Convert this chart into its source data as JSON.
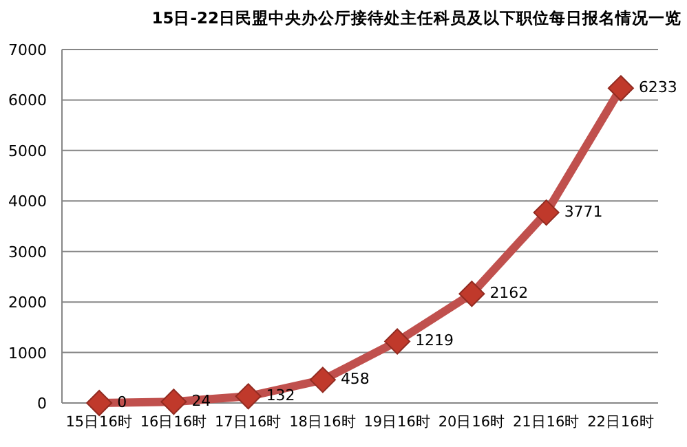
{
  "chart_data": {
    "type": "line",
    "title": "15日-22日民盟中央办公厅接待处主任科员及以下职位每日报名情况一览",
    "categories": [
      "15日16时",
      "16日16时",
      "17日16时",
      "18日16时",
      "19日16时",
      "20日16时",
      "21日16时",
      "22日16时"
    ],
    "series": [
      {
        "color": "#c0504d",
        "values": [
          0,
          24,
          132,
          458,
          1219,
          2162,
          3771,
          6233
        ]
      }
    ],
    "ylim": [
      0,
      7000
    ],
    "yticks": [
      0,
      1000,
      2000,
      3000,
      4000,
      5000,
      6000,
      7000
    ],
    "grid": "y",
    "marker": "diamond",
    "line_style": "solid",
    "data_labels": true
  }
}
